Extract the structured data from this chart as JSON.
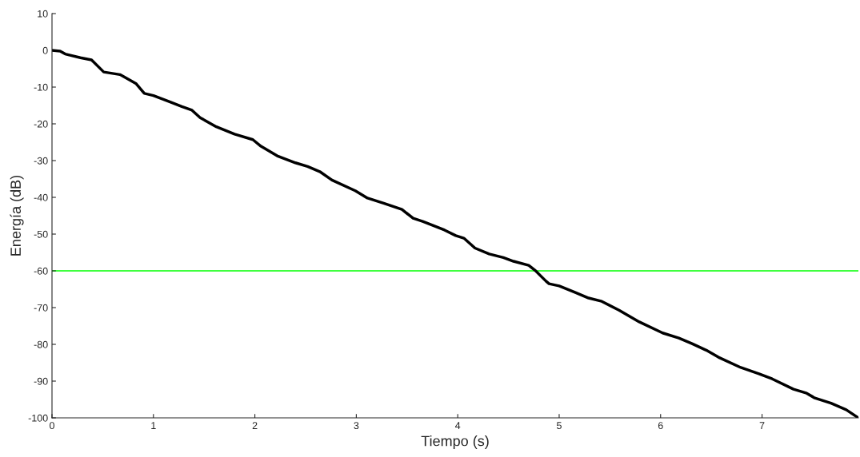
{
  "chart_data": {
    "type": "line",
    "xlabel": "Tiempo (s)",
    "ylabel": "Energía (dB)",
    "series": [
      {
        "color": "#000000",
        "x": [
          0,
          0.08,
          0.13,
          0.28,
          0.39,
          0.51,
          0.67,
          0.83,
          0.91,
          1.0,
          1.17,
          1.28,
          1.38,
          1.46,
          1.62,
          1.8,
          1.98,
          2.06,
          2.22,
          2.4,
          2.52,
          2.64,
          2.76,
          2.99,
          3.11,
          3.27,
          3.45,
          3.56,
          3.66,
          3.87,
          3.98,
          4.06,
          4.17,
          4.31,
          4.45,
          4.55,
          4.7,
          4.76,
          4.87,
          4.9,
          5.0,
          5.16,
          5.29,
          5.42,
          5.59,
          5.79,
          6.02,
          6.18,
          6.31,
          6.45,
          6.57,
          6.79,
          6.97,
          7.1,
          7.31,
          7.44,
          7.52,
          7.68,
          7.83,
          7.95
        ],
        "values": [
          0,
          -0.2,
          -1,
          -2,
          -2.6,
          -5.9,
          -6.6,
          -9.1,
          -11.7,
          -12.3,
          -14.1,
          -15.3,
          -16.3,
          -18.3,
          -20.8,
          -22.8,
          -24.3,
          -26.1,
          -28.7,
          -30.6,
          -31.6,
          -33,
          -35.3,
          -38.2,
          -40.2,
          -41.6,
          -43.3,
          -45.7,
          -46.6,
          -48.9,
          -50.4,
          -51.1,
          -53.8,
          -55.4,
          -56.4,
          -57.4,
          -58.5,
          -59.8,
          -62.8,
          -63.5,
          -64.1,
          -65.9,
          -67.4,
          -68.3,
          -70.7,
          -73.9,
          -76.9,
          -78.3,
          -79.8,
          -81.6,
          -83.5,
          -86.3,
          -88,
          -89.4,
          -92.2,
          -93.3,
          -94.6,
          -96,
          -97.8,
          -100
        ]
      }
    ],
    "ref_lines": [
      {
        "axis": "y",
        "value": -60,
        "color": "#00ff00"
      }
    ],
    "xlim": [
      0,
      7.95
    ],
    "xticks": [
      0,
      1,
      2,
      3,
      4,
      5,
      6,
      7
    ],
    "ylim": [
      -100,
      10
    ],
    "yticks": [
      -100,
      -90,
      -80,
      -70,
      -60,
      -50,
      -40,
      -30,
      -20,
      -10,
      0,
      10
    ],
    "grid": false,
    "legend": false,
    "marker": "none",
    "line_style": "solid"
  }
}
